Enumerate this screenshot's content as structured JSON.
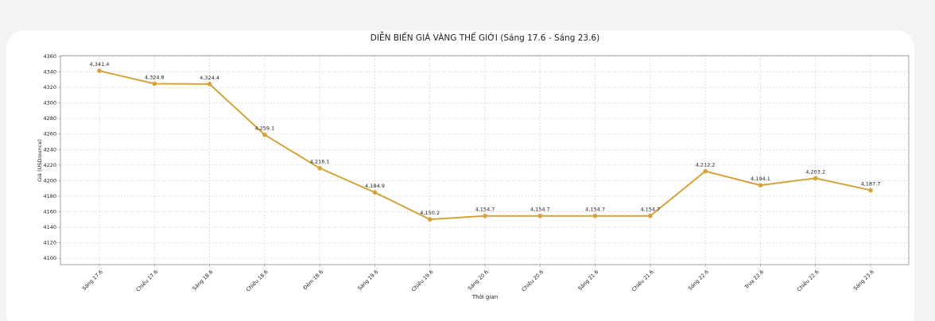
{
  "chart_data": {
    "type": "line",
    "title": "DIỄN BIẾN GIÁ VÀNG THẾ GIỚI (Sáng 17.6 - Sáng 23.6)",
    "x_label": "Thời gian",
    "y_label": "Giá (USD/ounce)",
    "categories": [
      "Sáng 17.6",
      "Chiều 17.6",
      "Sáng 18.6",
      "Chiều 18.6",
      "Đêm 18.6",
      "Sáng 19.6",
      "Chiều 19.6",
      "Sáng 20.6",
      "Chiều 20.6",
      "Sáng 21.6",
      "Chiều 21.6",
      "Sáng 22.6",
      "Trưa 22.6",
      "Chiều 22.6",
      "Sáng 23.6"
    ],
    "values": [
      4341.4,
      4324.8,
      4324.4,
      4259.1,
      4216.1,
      4184.9,
      4150.2,
      4154.7,
      4154.7,
      4154.7,
      4154.7,
      4212.2,
      4194.1,
      4203.2,
      4187.7
    ],
    "value_labels": [
      "4,341.4",
      "4,324.8",
      "4,324.4",
      "4,259.1",
      "4,216.1",
      "4,184.9",
      "4,150.2",
      "4,154.7",
      "4,154.7",
      "4,154.7",
      "4,154.7",
      "4,212.2",
      "4,194.1",
      "4,203.2",
      "4,187.7"
    ],
    "color": "#d4a43c",
    "ylim": [
      4092,
      4361
    ],
    "yticks": [
      4100,
      4120,
      4140,
      4160,
      4180,
      4200,
      4220,
      4240,
      4260,
      4280,
      4300,
      4320,
      4340,
      4360
    ],
    "grid": true
  }
}
